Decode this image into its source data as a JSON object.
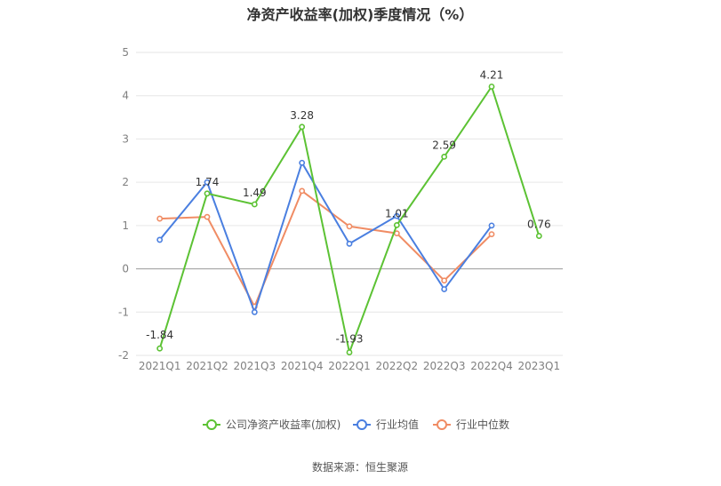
{
  "chart_data": {
    "type": "line",
    "title": "净资产收益率(加权)季度情况（%）",
    "categories": [
      "2021Q1",
      "2021Q2",
      "2021Q3",
      "2021Q4",
      "2022Q1",
      "2022Q2",
      "2022Q3",
      "2022Q4",
      "2023Q1"
    ],
    "ylim": [
      -2,
      5
    ],
    "yticks": [
      -2,
      -1,
      0,
      1,
      2,
      3,
      4,
      5
    ],
    "grid": true,
    "legend_position": "bottom",
    "series": [
      {
        "name": "公司净资产收益率(加权)",
        "color": "#5cc234",
        "values": [
          -1.84,
          1.74,
          1.49,
          3.28,
          -1.93,
          1.01,
          2.59,
          4.21,
          0.76
        ],
        "labels": [
          "-1.84",
          "1.74",
          "1.49",
          "3.28",
          "-1.93",
          "1.01",
          "2.59",
          "4.21",
          "0.76"
        ]
      },
      {
        "name": "行业均值",
        "color": "#4a7fe0",
        "values": [
          0.67,
          2.0,
          -1.0,
          2.45,
          0.58,
          1.22,
          -0.47,
          1.0,
          null
        ]
      },
      {
        "name": "行业中位数",
        "color": "#f08c64",
        "values": [
          1.16,
          1.2,
          -0.87,
          1.8,
          0.98,
          0.82,
          -0.27,
          0.8,
          null
        ]
      }
    ],
    "source": "数据来源：恒生聚源"
  }
}
